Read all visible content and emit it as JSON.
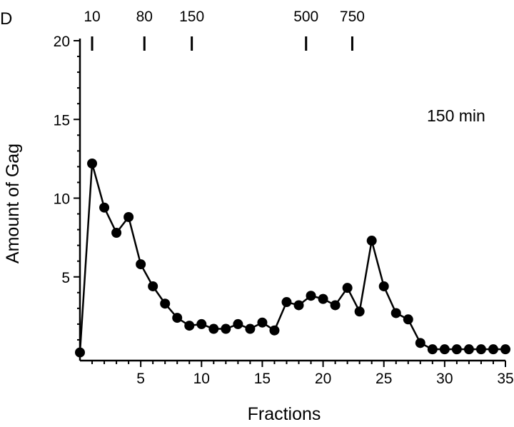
{
  "panel_label": "D",
  "chart_data": {
    "type": "line",
    "title": "",
    "annotation": "150 min",
    "xlabel": "Fractions",
    "ylabel": "Amount of Gag",
    "xlim": [
      0,
      35
    ],
    "ylim": [
      0,
      20
    ],
    "x_ticks": [
      5,
      10,
      15,
      20,
      25,
      30,
      35
    ],
    "y_ticks": [
      5,
      10,
      15,
      20
    ],
    "grid": false,
    "series": [
      {
        "x": [
          0,
          1,
          2,
          3,
          4,
          5,
          6,
          7,
          8,
          9,
          10,
          11,
          12,
          13,
          14,
          15,
          16,
          17,
          18,
          19,
          20,
          21,
          22,
          23,
          24,
          25,
          26,
          27,
          28,
          29,
          30,
          31,
          32,
          33,
          34,
          35
        ],
        "values": [
          0.2,
          12.2,
          9.4,
          7.8,
          8.8,
          5.8,
          4.4,
          3.3,
          2.4,
          1.9,
          2.0,
          1.7,
          1.7,
          2.0,
          1.7,
          2.1,
          1.6,
          3.4,
          3.2,
          3.8,
          3.6,
          3.2,
          4.3,
          2.8,
          7.3,
          4.4,
          2.7,
          2.3,
          0.8,
          0.4,
          0.4,
          0.4,
          0.4,
          0.4,
          0.4,
          0.4
        ]
      }
    ],
    "markers": [
      {
        "label": "10",
        "position": 1.0
      },
      {
        "label": "80",
        "position": 5.3
      },
      {
        "label": "150",
        "position": 9.2
      },
      {
        "label": "500",
        "position": 18.6
      },
      {
        "label": "750",
        "position": 22.4
      }
    ]
  }
}
